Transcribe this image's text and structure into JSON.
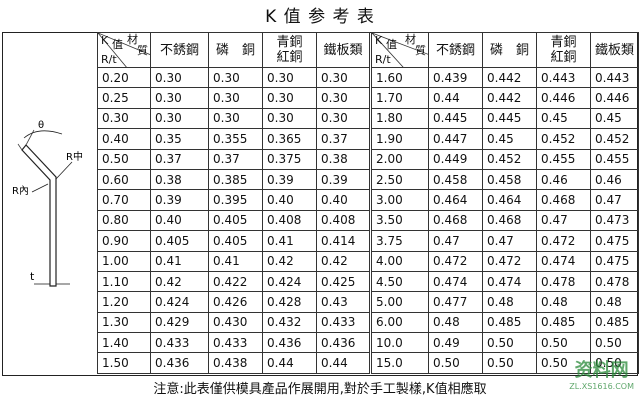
{
  "title": "K 值 参 考 表",
  "diagram": {
    "angle": "θ",
    "r_mid": "R中",
    "r_in": "R內",
    "thickness": "t"
  },
  "tables": [
    {
      "header": {
        "k": "K",
        "zhi": "值",
        "cai": "材",
        "zhi2": "質",
        "rt": "R/t"
      },
      "columns": [
        "不銹鋼",
        "磷　銅",
        [
          "青銅",
          "紅銅"
        ],
        "鐵板類"
      ],
      "rows": [
        [
          "0.20",
          "0.30",
          "0.30",
          "0.30",
          "0.30"
        ],
        [
          "0.25",
          "0.30",
          "0.30",
          "0.30",
          "0.30"
        ],
        [
          "0.30",
          "0.30",
          "0.30",
          "0.30",
          "0.30"
        ],
        [
          "0.40",
          "0.35",
          "0.355",
          "0.365",
          "0.37"
        ],
        [
          "0.50",
          "0.37",
          "0.37",
          "0.375",
          "0.38"
        ],
        [
          "0.60",
          "0.38",
          "0.385",
          "0.39",
          "0.39"
        ],
        [
          "0.70",
          "0.39",
          "0.395",
          "0.40",
          "0.40"
        ],
        [
          "0.80",
          "0.40",
          "0.405",
          "0.408",
          "0.408"
        ],
        [
          "0.90",
          "0.405",
          "0.405",
          "0.41",
          "0.414"
        ],
        [
          "1.00",
          "0.41",
          "0.41",
          "0.42",
          "0.42"
        ],
        [
          "1.10",
          "0.42",
          "0.422",
          "0.424",
          "0.425"
        ],
        [
          "1.20",
          "0.424",
          "0.426",
          "0.428",
          "0.43"
        ],
        [
          "1.30",
          "0.429",
          "0.430",
          "0.432",
          "0.433"
        ],
        [
          "1.40",
          "0.433",
          "0.433",
          "0.436",
          "0.436"
        ],
        [
          "1.50",
          "0.436",
          "0.438",
          "0.44",
          "0.44"
        ]
      ]
    },
    {
      "header": {
        "k": "K",
        "zhi": "值",
        "cai": "材",
        "zhi2": "質",
        "rt": "R/t"
      },
      "columns": [
        "不銹鋼",
        "磷　銅",
        [
          "青銅",
          "紅銅"
        ],
        "鐵板類"
      ],
      "rows": [
        [
          "1.60",
          "0.439",
          "0.442",
          "0.443",
          "0.443"
        ],
        [
          "1.70",
          "0.44",
          "0.442",
          "0.446",
          "0.446"
        ],
        [
          "1.80",
          "0.445",
          "0.445",
          "0.45",
          "0.45"
        ],
        [
          "1.90",
          "0.447",
          "0.45",
          "0.452",
          "0.452"
        ],
        [
          "2.00",
          "0.449",
          "0.452",
          "0.455",
          "0.455"
        ],
        [
          "2.50",
          "0.458",
          "0.458",
          "0.46",
          "0.46"
        ],
        [
          "3.00",
          "0.464",
          "0.464",
          "0.468",
          "0.47"
        ],
        [
          "3.50",
          "0.468",
          "0.468",
          "0.47",
          "0.473"
        ],
        [
          "3.75",
          "0.47",
          "0.47",
          "0.472",
          "0.475"
        ],
        [
          "4.00",
          "0.472",
          "0.472",
          "0.474",
          "0.475"
        ],
        [
          "4.50",
          "0.474",
          "0.474",
          "0.478",
          "0.478"
        ],
        [
          "5.00",
          "0.477",
          "0.48",
          "0.48",
          "0.48"
        ],
        [
          "6.00",
          "0.48",
          "0.485",
          "0.485",
          "0.485"
        ],
        [
          "10.0",
          "0.49",
          "0.50",
          "0.50",
          "0.50"
        ],
        [
          "15.0",
          "0.50",
          "0.50",
          "0.50",
          "0.50"
        ]
      ]
    }
  ],
  "note": "注意:此表僅供模具產品作展開用,對於手工製樣,K值相應取",
  "watermark": {
    "brand": "资料网",
    "url": "ZL.XS1616.COM"
  }
}
